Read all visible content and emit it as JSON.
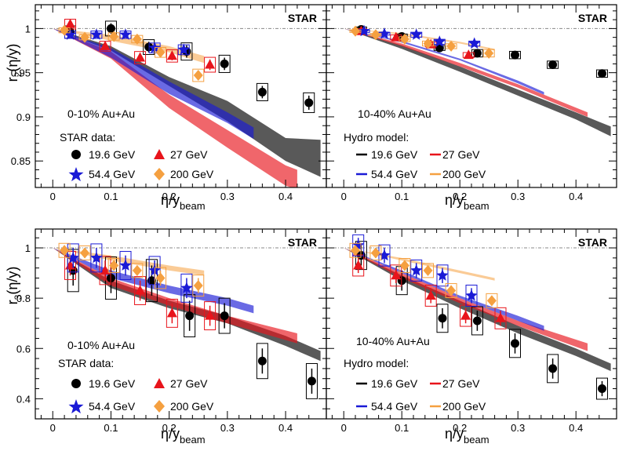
{
  "figure": {
    "star_label": "STAR",
    "xlabel": {
      "base": "η/y",
      "sub": "beam"
    },
    "r2_ylabel": {
      "base": "r",
      "sub": "2",
      "tail": "(η/y)"
    },
    "r3_ylabel": {
      "base": "r",
      "sub": "3",
      "tail": "(η/y)"
    },
    "colors": {
      "19.6": "#000000",
      "27": "#e8141b",
      "54.4": "#1a1ad6",
      "200": "#f5a040"
    }
  },
  "legends": {
    "central_title": "0-10%  Au+Au",
    "central_header": "STAR data:",
    "midcentral_title": "10-40%  Au+Au",
    "midcentral_header": "Hydro model:",
    "e19": "19.6 GeV",
    "e27": "27 GeV",
    "e54": "54.4 GeV",
    "e200": "200 GeV"
  },
  "chart_data": [
    {
      "type": "scatter",
      "panel": "r2, 0-10% Au+Au",
      "xlim": [
        -0.03,
        0.47
      ],
      "ylim": [
        0.82,
        1.027
      ],
      "xticks": [
        "0",
        "0.1",
        "0.2",
        "0.3",
        "0.4"
      ],
      "yticks": [
        "0.85",
        "0.9",
        "0.95",
        "1"
      ],
      "series": [
        {
          "name": "19.6 GeV",
          "x": [
            0.03,
            0.1,
            0.165,
            0.23,
            0.295,
            0.36,
            0.44
          ],
          "y": [
            0.996,
            1.0,
            0.979,
            0.974,
            0.96,
            0.928,
            0.916
          ],
          "err": [
            0.005,
            0.006,
            0.006,
            0.007,
            0.007,
            0.007,
            0.008
          ]
        },
        {
          "name": "27 GeV",
          "x": [
            0.03,
            0.09,
            0.15,
            0.205,
            0.27
          ],
          "y": [
            1.005,
            0.98,
            0.967,
            0.969,
            0.959
          ],
          "err": [
            0.004,
            0.004,
            0.005,
            0.005,
            0.006
          ]
        },
        {
          "name": "54.4 GeV",
          "x": [
            0.03,
            0.075,
            0.125,
            0.175,
            0.225
          ],
          "y": [
            0.993,
            0.993,
            0.993,
            0.978,
            0.976
          ],
          "err": [
            0.003,
            0.003,
            0.003,
            0.004,
            0.004
          ]
        },
        {
          "name": "200 GeV",
          "x": [
            0.02,
            0.055,
            0.105,
            0.145,
            0.185,
            0.25
          ],
          "y": [
            0.998,
            0.99,
            0.991,
            0.988,
            0.973,
            0.947
          ],
          "err": [
            0.002,
            0.002,
            0.003,
            0.003,
            0.004,
            0.005
          ]
        }
      ],
      "model_bands": [
        {
          "name": "19.6 GeV",
          "x": [
            0.0,
            0.1,
            0.2,
            0.3,
            0.4,
            0.46
          ],
          "lo": [
            1.0,
            0.975,
            0.935,
            0.895,
            0.85,
            0.832
          ],
          "hi": [
            1.0,
            0.98,
            0.945,
            0.918,
            0.876,
            0.874
          ]
        },
        {
          "name": "27 GeV",
          "x": [
            0.0,
            0.1,
            0.2,
            0.3,
            0.4,
            0.42
          ],
          "lo": [
            1.0,
            0.966,
            0.91,
            0.865,
            0.822,
            0.818
          ],
          "hi": [
            1.0,
            0.974,
            0.925,
            0.885,
            0.845,
            0.84
          ]
        },
        {
          "name": "54.4 GeV",
          "x": [
            0.0,
            0.1,
            0.2,
            0.3,
            0.345
          ],
          "lo": [
            1.0,
            0.967,
            0.926,
            0.893,
            0.875
          ],
          "hi": [
            1.0,
            0.978,
            0.94,
            0.905,
            0.888
          ]
        },
        {
          "name": "200 GeV",
          "x": [
            0.0,
            0.1,
            0.2,
            0.26
          ],
          "lo": [
            1.0,
            0.986,
            0.973,
            0.961
          ],
          "hi": [
            1.0,
            0.993,
            0.98,
            0.969
          ]
        }
      ]
    },
    {
      "type": "scatter",
      "panel": "r2, 10-40% Au+Au",
      "xlim": [
        -0.03,
        0.47
      ],
      "ylim": [
        0.82,
        1.027
      ],
      "xticks": [
        "0",
        "0.1",
        "0.2",
        "0.3",
        "0.4"
      ],
      "yticks": [],
      "series": [
        {
          "name": "19.6 GeV",
          "x": [
            0.03,
            0.1,
            0.165,
            0.23,
            0.295,
            0.36,
            0.445
          ],
          "y": [
            0.999,
            0.991,
            0.978,
            0.972,
            0.97,
            0.959,
            0.949
          ],
          "err": [
            0.002,
            0.002,
            0.002,
            0.003,
            0.003,
            0.003,
            0.003
          ]
        },
        {
          "name": "27 GeV",
          "x": [
            0.03,
            0.09,
            0.15,
            0.215
          ],
          "y": [
            0.997,
            0.99,
            0.982,
            0.97
          ],
          "err": [
            0.002,
            0.002,
            0.002,
            0.002
          ]
        },
        {
          "name": "54.4 GeV",
          "x": [
            0.035,
            0.07,
            0.125,
            0.165,
            0.225
          ],
          "y": [
            0.997,
            0.994,
            0.993,
            0.985,
            0.983
          ],
          "err": [
            0.001,
            0.001,
            0.002,
            0.002,
            0.002
          ]
        },
        {
          "name": "200 GeV",
          "x": [
            0.02,
            0.055,
            0.105,
            0.145,
            0.185,
            0.25
          ],
          "y": [
            0.997,
            0.993,
            0.988,
            0.983,
            0.98,
            0.972
          ],
          "err": [
            0.001,
            0.001,
            0.002,
            0.002,
            0.002,
            0.003
          ]
        }
      ],
      "model_bands": [
        {
          "name": "19.6 GeV",
          "x": [
            0.0,
            0.1,
            0.2,
            0.3,
            0.4,
            0.46
          ],
          "lo": [
            1.0,
            0.977,
            0.951,
            0.924,
            0.897,
            0.878
          ],
          "hi": [
            1.0,
            0.981,
            0.957,
            0.931,
            0.905,
            0.889
          ]
        },
        {
          "name": "27 GeV",
          "x": [
            0.0,
            0.1,
            0.2,
            0.3,
            0.42
          ],
          "lo": [
            1.0,
            0.98,
            0.957,
            0.933,
            0.9
          ],
          "hi": [
            1.0,
            0.983,
            0.961,
            0.937,
            0.905
          ]
        },
        {
          "name": "54.4 GeV",
          "x": [
            0.0,
            0.1,
            0.2,
            0.3,
            0.345
          ],
          "lo": [
            1.0,
            0.984,
            0.964,
            0.938,
            0.925
          ],
          "hi": [
            1.0,
            0.986,
            0.966,
            0.941,
            0.928
          ]
        },
        {
          "name": "200 GeV",
          "x": [
            0.0,
            0.1,
            0.2,
            0.26
          ],
          "lo": [
            1.0,
            0.993,
            0.983,
            0.975
          ],
          "hi": [
            1.0,
            0.995,
            0.985,
            0.977
          ]
        }
      ]
    },
    {
      "type": "scatter",
      "panel": "r3, 0-10% Au+Au",
      "xlim": [
        -0.03,
        0.47
      ],
      "ylim": [
        0.32,
        1.075
      ],
      "xticks": [
        "0",
        "0.1",
        "0.2",
        "0.3",
        "0.4"
      ],
      "yticks": [
        "0.4",
        "0.6",
        "0.8",
        "1"
      ],
      "series": [
        {
          "name": "19.6 GeV",
          "x": [
            0.035,
            0.1,
            0.17,
            0.235,
            0.295,
            0.36,
            0.445
          ],
          "y": [
            0.91,
            0.88,
            0.87,
            0.73,
            0.73,
            0.55,
            0.47
          ],
          "err": [
            0.06,
            0.06,
            0.06,
            0.06,
            0.05,
            0.05,
            0.05
          ]
        },
        {
          "name": "27 GeV",
          "x": [
            0.03,
            0.09,
            0.15,
            0.205,
            0.27
          ],
          "y": [
            0.93,
            0.91,
            0.83,
            0.74,
            0.73
          ],
          "err": [
            0.04,
            0.04,
            0.04,
            0.04,
            0.04
          ]
        },
        {
          "name": "54.4 GeV",
          "x": [
            0.035,
            0.075,
            0.125,
            0.175,
            0.23
          ],
          "y": [
            0.96,
            0.96,
            0.93,
            0.91,
            0.84
          ],
          "err": [
            0.04,
            0.04,
            0.04,
            0.04,
            0.04
          ]
        },
        {
          "name": "200 GeV",
          "x": [
            0.02,
            0.055,
            0.105,
            0.145,
            0.185,
            0.25
          ],
          "y": [
            0.99,
            0.98,
            0.93,
            0.91,
            0.88,
            0.85
          ],
          "err": [
            0.02,
            0.02,
            0.02,
            0.02,
            0.03,
            0.03
          ]
        }
      ],
      "model_bands": [
        {
          "name": "19.6 GeV",
          "x": [
            0.0,
            0.1,
            0.2,
            0.3,
            0.4,
            0.46
          ],
          "lo": [
            1.0,
            0.84,
            0.76,
            0.7,
            0.61,
            0.55
          ],
          "hi": [
            1.0,
            0.87,
            0.79,
            0.73,
            0.65,
            0.59
          ]
        },
        {
          "name": "27 GeV",
          "x": [
            0.0,
            0.1,
            0.2,
            0.3,
            0.42
          ],
          "lo": [
            1.0,
            0.85,
            0.77,
            0.7,
            0.62
          ],
          "hi": [
            1.0,
            0.88,
            0.8,
            0.73,
            0.66
          ]
        },
        {
          "name": "54.4 GeV",
          "x": [
            0.0,
            0.1,
            0.2,
            0.3,
            0.345
          ],
          "lo": [
            1.0,
            0.88,
            0.82,
            0.77,
            0.74
          ],
          "hi": [
            1.0,
            0.91,
            0.85,
            0.8,
            0.77
          ]
        },
        {
          "name": "200 GeV",
          "x": [
            0.0,
            0.1,
            0.2,
            0.26
          ],
          "lo": [
            1.0,
            0.95,
            0.91,
            0.89
          ],
          "hi": [
            1.0,
            0.97,
            0.93,
            0.91
          ]
        }
      ]
    },
    {
      "type": "scatter",
      "panel": "r3, 10-40% Au+Au",
      "xlim": [
        -0.03,
        0.47
      ],
      "ylim": [
        0.32,
        1.075
      ],
      "xticks": [
        "0",
        "0.1",
        "0.2",
        "0.3",
        "0.4"
      ],
      "yticks": [],
      "series": [
        {
          "name": "19.6 GeV",
          "x": [
            0.03,
            0.1,
            0.17,
            0.23,
            0.295,
            0.36,
            0.445
          ],
          "y": [
            0.97,
            0.87,
            0.72,
            0.71,
            0.62,
            0.52,
            0.44
          ],
          "err": [
            0.04,
            0.04,
            0.04,
            0.04,
            0.04,
            0.04,
            0.03
          ]
        },
        {
          "name": "27 GeV",
          "x": [
            0.025,
            0.09,
            0.15,
            0.21,
            0.27
          ],
          "y": [
            0.93,
            0.89,
            0.81,
            0.73,
            0.72
          ],
          "err": [
            0.03,
            0.03,
            0.03,
            0.03,
            0.03
          ]
        },
        {
          "name": "54.4 GeV",
          "x": [
            0.025,
            0.07,
            0.125,
            0.17,
            0.22
          ],
          "y": [
            1.01,
            0.97,
            0.91,
            0.89,
            0.81
          ],
          "err": [
            0.03,
            0.03,
            0.03,
            0.03,
            0.03
          ]
        },
        {
          "name": "200 GeV",
          "x": [
            0.02,
            0.055,
            0.105,
            0.145,
            0.185,
            0.255
          ],
          "y": [
            0.99,
            0.98,
            0.93,
            0.91,
            0.83,
            0.79
          ],
          "err": [
            0.02,
            0.02,
            0.02,
            0.02,
            0.02,
            0.02
          ]
        }
      ],
      "model_bands": [
        {
          "name": "19.6 GeV",
          "x": [
            0.0,
            0.1,
            0.2,
            0.3,
            0.4,
            0.46
          ],
          "lo": [
            1.0,
            0.87,
            0.76,
            0.66,
            0.57,
            0.51
          ],
          "hi": [
            1.0,
            0.89,
            0.79,
            0.69,
            0.6,
            0.54
          ]
        },
        {
          "name": "27 GeV",
          "x": [
            0.0,
            0.1,
            0.2,
            0.3,
            0.42
          ],
          "lo": [
            1.0,
            0.88,
            0.78,
            0.69,
            0.59
          ],
          "hi": [
            1.0,
            0.9,
            0.8,
            0.71,
            0.62
          ]
        },
        {
          "name": "54.4 GeV",
          "x": [
            0.0,
            0.1,
            0.2,
            0.3,
            0.345
          ],
          "lo": [
            1.0,
            0.9,
            0.8,
            0.71,
            0.67
          ],
          "hi": [
            1.0,
            0.91,
            0.81,
            0.73,
            0.69
          ]
        },
        {
          "name": "200 GeV",
          "x": [
            0.0,
            0.1,
            0.2,
            0.26
          ],
          "lo": [
            1.0,
            0.95,
            0.9,
            0.87
          ],
          "hi": [
            1.0,
            0.96,
            0.91,
            0.88
          ]
        }
      ]
    }
  ]
}
